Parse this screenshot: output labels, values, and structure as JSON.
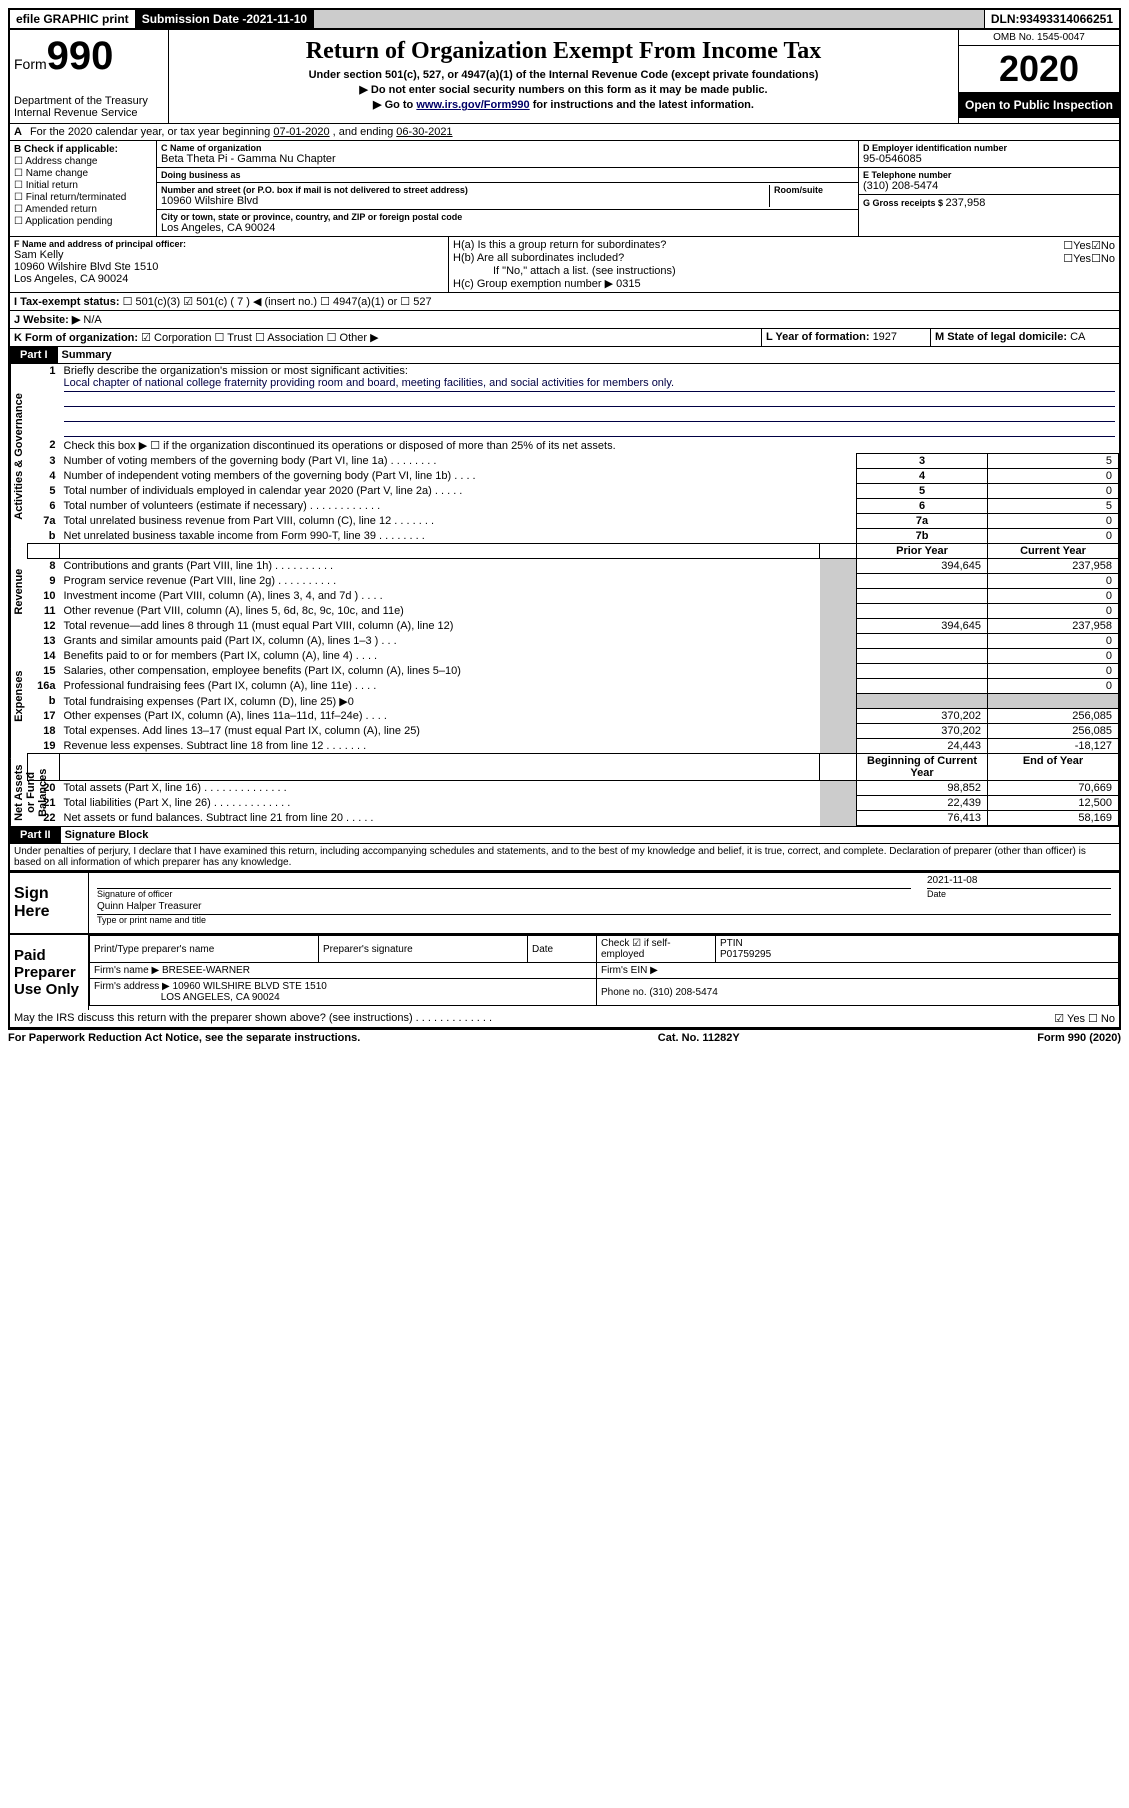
{
  "topbar": {
    "efile": "efile GRAPHIC print",
    "sub_label": "Submission Date - ",
    "sub_date": "2021-11-10",
    "dln_label": "DLN: ",
    "dln": "93493314066251"
  },
  "header": {
    "form_word": "Form",
    "form_num": "990",
    "dept": "Department of the Treasury\nInternal Revenue Service",
    "title": "Return of Organization Exempt From Income Tax",
    "sub1": "Under section 501(c), 527, or 4947(a)(1) of the Internal Revenue Code (except private foundations)",
    "sub2": "▶ Do not enter social security numbers on this form as it may be made public.",
    "sub3_pre": "▶ Go to ",
    "sub3_link": "www.irs.gov/Form990",
    "sub3_post": " for instructions and the latest information.",
    "omb": "OMB No. 1545-0047",
    "year": "2020",
    "open": "Open to Public Inspection"
  },
  "A": {
    "text": "For the 2020 calendar year, or tax year beginning ",
    "begin": "07-01-2020",
    "mid": " , and ending ",
    "end": "06-30-2021"
  },
  "B": {
    "label": "B Check if applicable:",
    "items": [
      "☐ Address change",
      "☐ Name change",
      "☐ Initial return",
      "☐ Final return/terminated",
      "☐ Amended return",
      "☐ Application pending"
    ]
  },
  "C": {
    "name_lbl": "C Name of organization",
    "name": "Beta Theta Pi - Gamma Nu Chapter",
    "dba_lbl": "Doing business as",
    "dba": "",
    "street_lbl": "Number and street (or P.O. box if mail is not delivered to street address)",
    "room_lbl": "Room/suite",
    "street": "10960 Wilshire Blvd",
    "city_lbl": "City or town, state or province, country, and ZIP or foreign postal code",
    "city": "Los Angeles, CA  90024"
  },
  "D": {
    "lbl": "D Employer identification number",
    "val": "95-0546085"
  },
  "E": {
    "lbl": "E Telephone number",
    "val": "(310) 208-5474"
  },
  "G": {
    "lbl": "G Gross receipts $ ",
    "val": "237,958"
  },
  "F": {
    "lbl": "F Name and address of principal officer:",
    "name": "Sam Kelly",
    "addr1": "10960 Wilshire Blvd Ste 1510",
    "addr2": "Los Angeles, CA  90024"
  },
  "H": {
    "a_lbl": "H(a)  Is this a group return for subordinates?",
    "a_yes": "☐Yes",
    "a_no": "☑No",
    "b_lbl": "H(b)  Are all subordinates included?",
    "b_yes": "☐Yes",
    "b_no": "☐No",
    "b_note": "If \"No,\" attach a list. (see instructions)",
    "c_lbl": "H(c)  Group exemption number ▶",
    "c_val": "0315"
  },
  "I": {
    "lbl": "I  Tax-exempt status:",
    "opts": "☐ 501(c)(3)   ☑ 501(c) ( 7 ) ◀ (insert no.)   ☐ 4947(a)(1) or   ☐ 527"
  },
  "J": {
    "lbl": "J  Website: ▶",
    "val": "N/A"
  },
  "K": {
    "lbl": "K Form of organization:",
    "opts": "☑ Corporation  ☐ Trust  ☐ Association  ☐ Other ▶"
  },
  "L": {
    "lbl": "L Year of formation: ",
    "val": "1927"
  },
  "M": {
    "lbl": "M State of legal domicile: ",
    "val": "CA"
  },
  "part1": {
    "hdr": "Part I",
    "title": "Summary",
    "side_gov": "Activities & Governance",
    "side_rev": "Revenue",
    "side_exp": "Expenses",
    "side_net": "Net Assets or Fund Balances",
    "l1_lbl": "Briefly describe the organization's mission or most significant activities:",
    "l1_val": "Local chapter of national college fraternity providing room and board, meeting facilities, and social activities for members only.",
    "l2": "Check this box ▶ ☐  if the organization discontinued its operations or disposed of more than 25% of its net assets.",
    "rows_gov": [
      {
        "n": "3",
        "t": "Number of voting members of the governing body (Part VI, line 1a)   .   .   .   .   .   .   .   .",
        "b": "3",
        "v": "5"
      },
      {
        "n": "4",
        "t": "Number of independent voting members of the governing body (Part VI, line 1b)   .   .   .   .",
        "b": "4",
        "v": "0"
      },
      {
        "n": "5",
        "t": "Total number of individuals employed in calendar year 2020 (Part V, line 2a)   .   .   .   .   .",
        "b": "5",
        "v": "0"
      },
      {
        "n": "6",
        "t": "Total number of volunteers (estimate if necessary)   .   .   .   .   .   .   .   .   .   .   .   .",
        "b": "6",
        "v": "5"
      },
      {
        "n": "7a",
        "t": "Total unrelated business revenue from Part VIII, column (C), line 12   .   .   .   .   .   .   .",
        "b": "7a",
        "v": "0"
      },
      {
        "n": "b",
        "t": "Net unrelated business taxable income from Form 990-T, line 39   .   .   .   .   .   .   .   .",
        "b": "7b",
        "v": "0"
      }
    ],
    "colhdr_prior": "Prior Year",
    "colhdr_curr": "Current Year",
    "colhdr_beg": "Beginning of Current Year",
    "colhdr_end": "End of Year",
    "rows_rev": [
      {
        "n": "8",
        "t": "Contributions and grants (Part VIII, line 1h)   .   .   .   .   .   .   .   .   .   .",
        "p": "394,645",
        "c": "237,958"
      },
      {
        "n": "9",
        "t": "Program service revenue (Part VIII, line 2g)   .   .   .   .   .   .   .   .   .   .",
        "p": "",
        "c": "0"
      },
      {
        "n": "10",
        "t": "Investment income (Part VIII, column (A), lines 3, 4, and 7d )   .   .   .   .",
        "p": "",
        "c": "0"
      },
      {
        "n": "11",
        "t": "Other revenue (Part VIII, column (A), lines 5, 6d, 8c, 9c, 10c, and 11e)",
        "p": "",
        "c": "0"
      },
      {
        "n": "12",
        "t": "Total revenue—add lines 8 through 11 (must equal Part VIII, column (A), line 12)",
        "p": "394,645",
        "c": "237,958"
      }
    ],
    "rows_exp": [
      {
        "n": "13",
        "t": "Grants and similar amounts paid (Part IX, column (A), lines 1–3 )   .   .   .",
        "p": "",
        "c": "0"
      },
      {
        "n": "14",
        "t": "Benefits paid to or for members (Part IX, column (A), line 4)   .   .   .   .",
        "p": "",
        "c": "0"
      },
      {
        "n": "15",
        "t": "Salaries, other compensation, employee benefits (Part IX, column (A), lines 5–10)",
        "p": "",
        "c": "0"
      },
      {
        "n": "16a",
        "t": "Professional fundraising fees (Part IX, column (A), line 11e)   .   .   .   .",
        "p": "",
        "c": "0"
      },
      {
        "n": "b",
        "t": "Total fundraising expenses (Part IX, column (D), line 25) ▶0",
        "p": "grey",
        "c": "grey"
      },
      {
        "n": "17",
        "t": "Other expenses (Part IX, column (A), lines 11a–11d, 11f–24e)   .   .   .   .",
        "p": "370,202",
        "c": "256,085"
      },
      {
        "n": "18",
        "t": "Total expenses. Add lines 13–17 (must equal Part IX, column (A), line 25)",
        "p": "370,202",
        "c": "256,085"
      },
      {
        "n": "19",
        "t": "Revenue less expenses. Subtract line 18 from line 12   .   .   .   .   .   .   .",
        "p": "24,443",
        "c": "-18,127"
      }
    ],
    "rows_net": [
      {
        "n": "20",
        "t": "Total assets (Part X, line 16)   .   .   .   .   .   .   .   .   .   .   .   .   .   .",
        "p": "98,852",
        "c": "70,669"
      },
      {
        "n": "21",
        "t": "Total liabilities (Part X, line 26)   .   .   .   .   .   .   .   .   .   .   .   .   .",
        "p": "22,439",
        "c": "12,500"
      },
      {
        "n": "22",
        "t": "Net assets or fund balances. Subtract line 21 from line 20   .   .   .   .   .",
        "p": "76,413",
        "c": "58,169"
      }
    ]
  },
  "part2": {
    "hdr": "Part II",
    "title": "Signature Block",
    "decl": "Under penalties of perjury, I declare that I have examined this return, including accompanying schedules and statements, and to the best of my knowledge and belief, it is true, correct, and complete. Declaration of preparer (other than officer) is based on all information of which preparer has any knowledge."
  },
  "sign": {
    "left": "Sign Here",
    "sig_lbl": "Signature of officer",
    "date_lbl": "Date",
    "date": "2021-11-08",
    "name": "Quinn Halper  Treasurer",
    "name_lbl": "Type or print name and title"
  },
  "prep": {
    "left": "Paid Preparer Use Only",
    "h1": "Print/Type preparer's name",
    "h2": "Preparer's signature",
    "h3": "Date",
    "h4": "Check ☑ if self-employed",
    "h5_lbl": "PTIN",
    "h5": "P01759295",
    "firm_lbl": "Firm's name    ▶",
    "firm": "BRESEE-WARNER",
    "ein_lbl": "Firm's EIN ▶",
    "addr_lbl": "Firm's address ▶",
    "addr1": "10960 WILSHIRE BLVD STE 1510",
    "addr2": "LOS ANGELES, CA  90024",
    "phone_lbl": "Phone no. ",
    "phone": "(310) 208-5474",
    "discuss": "May the IRS discuss this return with the preparer shown above? (see instructions)   .   .   .   .   .   .   .   .   .   .   .   .   .",
    "discuss_yes": "☑ Yes",
    "discuss_no": "☐ No"
  },
  "footer": {
    "left": "For Paperwork Reduction Act Notice, see the separate instructions.",
    "mid": "Cat. No. 11282Y",
    "right": "Form 990 (2020)"
  }
}
